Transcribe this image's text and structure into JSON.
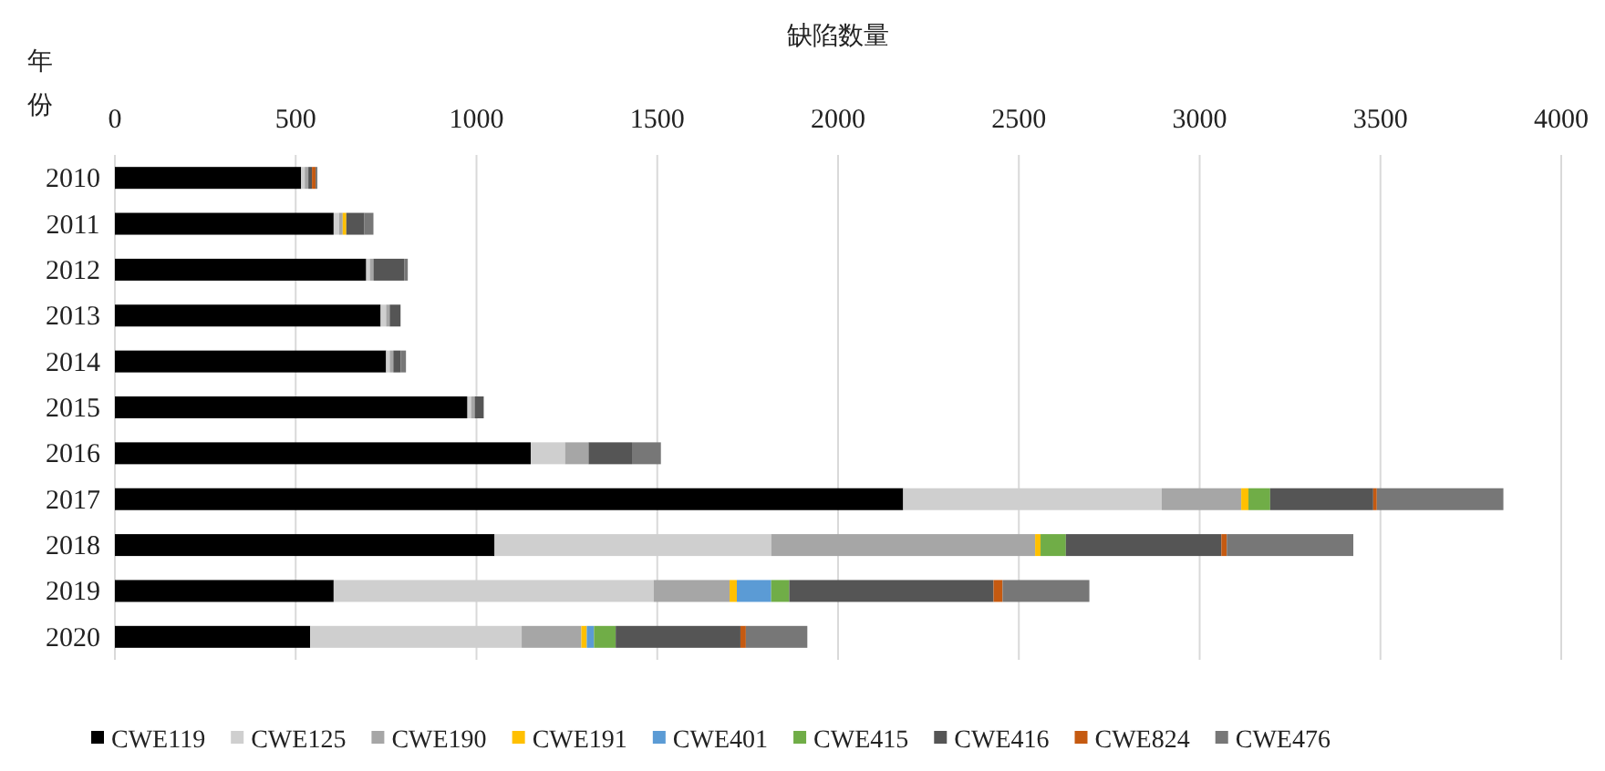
{
  "chart_data": {
    "type": "bar",
    "orientation": "horizontal",
    "stacked": true,
    "title": "缺陷数量",
    "ylabel": "年份",
    "categories": [
      "2010",
      "2011",
      "2012",
      "2013",
      "2014",
      "2015",
      "2016",
      "2017",
      "2018",
      "2019",
      "2020"
    ],
    "xlim": [
      0,
      4000
    ],
    "xticks": [
      0,
      500,
      1000,
      1500,
      2000,
      2500,
      3000,
      3500,
      4000
    ],
    "grid": "x",
    "legend": "bottom",
    "series": [
      {
        "name": "CWE119",
        "color": "#000000",
        "values": [
          515,
          605,
          695,
          735,
          750,
          975,
          1150,
          2180,
          1050,
          605,
          540
        ]
      },
      {
        "name": "CWE125",
        "color": "#cfcfcf",
        "values": [
          10,
          15,
          10,
          15,
          10,
          10,
          95,
          715,
          765,
          885,
          585
        ]
      },
      {
        "name": "CWE190",
        "color": "#a6a6a6",
        "values": [
          10,
          10,
          10,
          10,
          10,
          10,
          65,
          220,
          730,
          210,
          165
        ]
      },
      {
        "name": "CWE191",
        "color": "#ffc000",
        "values": [
          0,
          10,
          0,
          0,
          0,
          0,
          0,
          20,
          15,
          20,
          15
        ]
      },
      {
        "name": "CWE401",
        "color": "#5b9bd5",
        "values": [
          0,
          0,
          0,
          0,
          0,
          0,
          0,
          0,
          0,
          95,
          20
        ]
      },
      {
        "name": "CWE415",
        "color": "#70ad47",
        "values": [
          0,
          0,
          0,
          0,
          0,
          0,
          0,
          60,
          70,
          50,
          60
        ]
      },
      {
        "name": "CWE416",
        "color": "#555555",
        "values": [
          10,
          50,
          85,
          30,
          20,
          25,
          120,
          285,
          430,
          565,
          345
        ]
      },
      {
        "name": "CWE824",
        "color": "#c55a11",
        "values": [
          10,
          0,
          0,
          0,
          0,
          0,
          0,
          10,
          15,
          25,
          15
        ]
      },
      {
        "name": "CWE476",
        "color": "#777777",
        "values": [
          5,
          25,
          10,
          0,
          15,
          0,
          80,
          350,
          350,
          240,
          170
        ]
      }
    ]
  }
}
